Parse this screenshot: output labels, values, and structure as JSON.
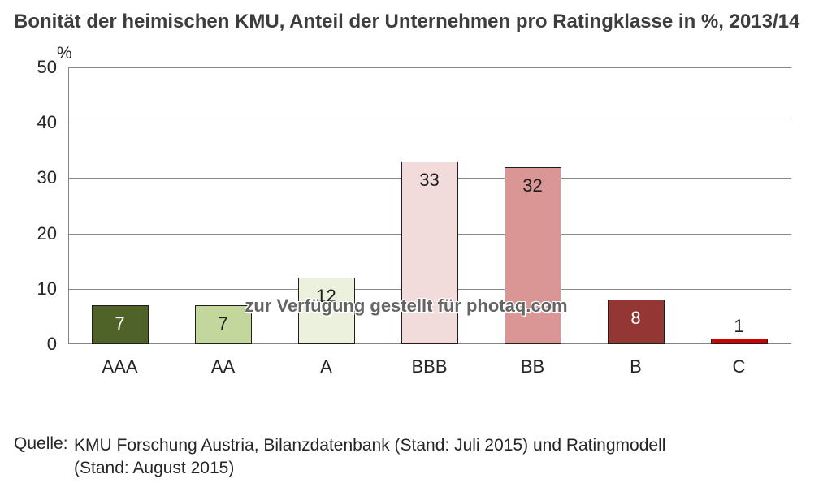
{
  "title": "Bonität der heimischen KMU, Anteil der Unternehmen pro Ratingklasse in %, 2013/14",
  "watermark": "zur Verfügung gestellt für photaq.com",
  "source": {
    "label": "Quelle:",
    "line1": "KMU Forschung Austria, Bilanzdatenbank (Stand: Juli 2015) und Ratingmodell",
    "line2": "(Stand: August 2015)"
  },
  "chart_data": {
    "type": "bar",
    "categories": [
      "AAA",
      "AA",
      "A",
      "BBB",
      "BB",
      "B",
      "C"
    ],
    "values": [
      7,
      7,
      12,
      33,
      32,
      8,
      1
    ],
    "bar_colors": [
      "#4f6228",
      "#c3d69b",
      "#ebf1dd",
      "#f2dcdb",
      "#d99694",
      "#943634",
      "#cc0000"
    ],
    "label_colors": [
      "#ffffff",
      "#1f1f1f",
      "#1f1f1f",
      "#1f1f1f",
      "#1f1f1f",
      "#ffffff",
      "#1f1f1f"
    ],
    "title": "Bonität der heimischen KMU, Anteil der Unternehmen pro Ratingklasse in %, 2013/14",
    "xlabel": "",
    "ylabel": "%",
    "yticks": [
      0,
      10,
      20,
      30,
      40,
      50
    ],
    "ylim": [
      0,
      50
    ],
    "grid": true,
    "legend": false
  }
}
